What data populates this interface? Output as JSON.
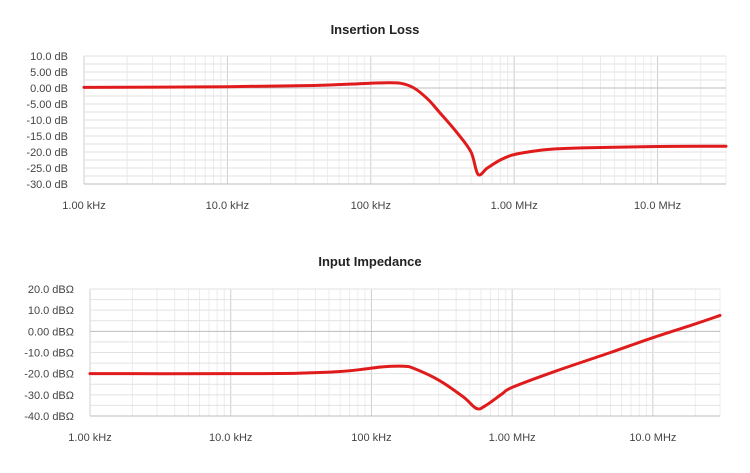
{
  "chart_data": [
    {
      "type": "line",
      "title": "Insertion Loss",
      "xlabel": "",
      "ylabel": "",
      "x_scale": "log",
      "xlim": [
        1000,
        30000000
      ],
      "ylim": [
        -30,
        10
      ],
      "x_ticks": [
        1000,
        10000,
        100000,
        1000000,
        10000000
      ],
      "x_tick_labels": [
        "1.00 kHz",
        "10.0 kHz",
        "100 kHz",
        "1.00 MHz",
        "10.0 MHz"
      ],
      "y_ticks": [
        10,
        5,
        0,
        -5,
        -10,
        -15,
        -20,
        -25,
        -30
      ],
      "y_tick_labels": [
        "10.0 dB",
        "5.00 dB",
        "0.00 dB",
        "-5.00 dB",
        "-10.0 dB",
        "-15.0 dB",
        "-20.0 dB",
        "-25.0 dB",
        "-30.0 dB"
      ],
      "grid": true,
      "color": "#e01b1b",
      "series": [
        {
          "x": [
            1000,
            10000,
            40000,
            80000,
            120000,
            160000,
            200000,
            250000,
            300000,
            400000,
            500000,
            560000,
            650000,
            800000,
            1000000,
            1500000,
            2000000,
            3000000,
            5000000,
            10000000,
            20000000,
            30000000
          ],
          "y": [
            0.2,
            0.4,
            0.8,
            1.3,
            1.6,
            1.5,
            0.0,
            -3.5,
            -7.5,
            -14.0,
            -20.0,
            -27.0,
            -25.0,
            -22.5,
            -20.8,
            -19.5,
            -19.0,
            -18.7,
            -18.5,
            -18.3,
            -18.2,
            -18.2
          ]
        }
      ]
    },
    {
      "type": "line",
      "title": "Input Impedance",
      "xlabel": "",
      "ylabel": "",
      "x_scale": "log",
      "xlim": [
        1000,
        30000000
      ],
      "ylim": [
        -40,
        20
      ],
      "x_ticks": [
        1000,
        10000,
        100000,
        1000000,
        10000000
      ],
      "x_tick_labels": [
        "1.00 kHz",
        "10.0 kHz",
        "100 kHz",
        "1.00 MHz",
        "10.0 MHz"
      ],
      "y_ticks": [
        20,
        10,
        0,
        -10,
        -20,
        -30,
        -40
      ],
      "y_tick_labels": [
        "20.0 dBΩ",
        "10.0 dBΩ",
        "0.00 dBΩ",
        "-10.0 dBΩ",
        "-20.0 dBΩ",
        "-30.0 dBΩ",
        "-40.0 dBΩ"
      ],
      "grid": true,
      "color": "#e01b1b",
      "series": [
        {
          "x": [
            1000,
            10000,
            30000,
            60000,
            90000,
            120000,
            170000,
            200000,
            300000,
            450000,
            560000,
            650000,
            850000,
            1000000,
            2000000,
            5000000,
            10000000,
            20000000,
            30000000
          ],
          "y": [
            -20.0,
            -20.0,
            -19.8,
            -19.0,
            -17.8,
            -16.8,
            -16.5,
            -17.5,
            -23.0,
            -31.0,
            -36.5,
            -35.0,
            -29.5,
            -26.5,
            -19.0,
            -10.0,
            -3.0,
            3.5,
            7.5
          ]
        }
      ]
    }
  ]
}
